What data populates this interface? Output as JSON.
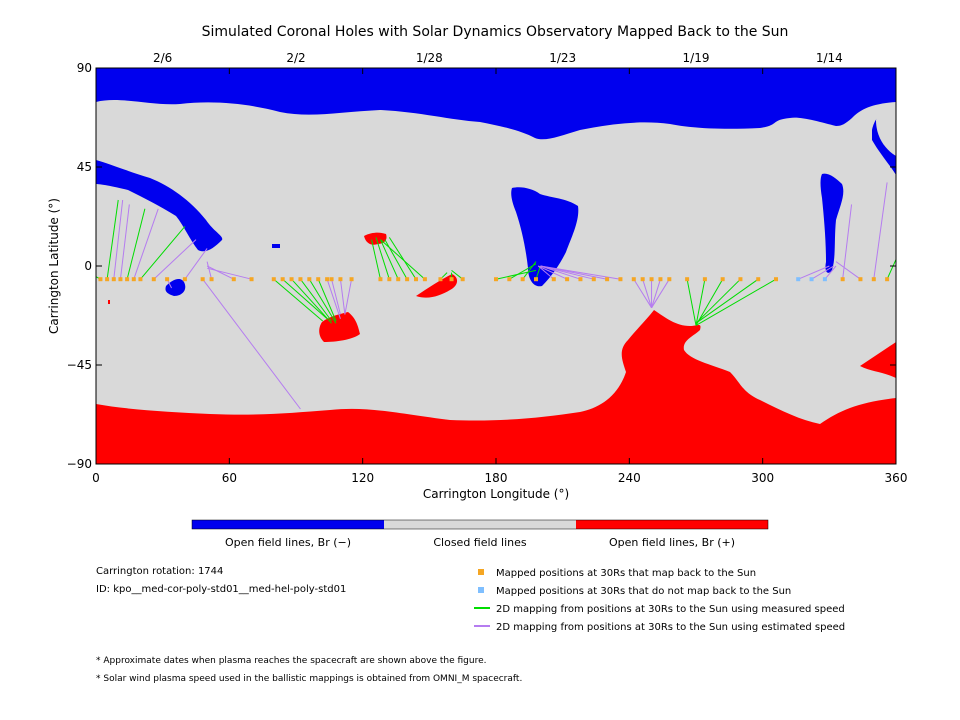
{
  "chart_data": {
    "type": "map",
    "title": "Simulated Coronal Holes with Solar Dynamics Observatory Mapped Back to the Sun",
    "xlabel": "Carrington Longitude (°)",
    "ylabel": "Carrington Latitude (°)",
    "xlim": [
      0,
      360
    ],
    "ylim": [
      -90,
      90
    ],
    "xticks": [
      0,
      60,
      120,
      180,
      240,
      300,
      360
    ],
    "yticks": [
      -90,
      -45,
      0,
      45,
      90
    ],
    "date_axis": [
      {
        "label": "2/6",
        "lon": 30
      },
      {
        "label": "2/2",
        "lon": 90
      },
      {
        "label": "1/28",
        "lon": 150
      },
      {
        "label": "1/23",
        "lon": 210
      },
      {
        "label": "1/19",
        "lon": 270
      },
      {
        "label": "1/14",
        "lon": 330
      }
    ],
    "colors": {
      "open_negative": "#0000ee",
      "closed": "#d9d9d9",
      "open_positive": "#ff0000",
      "mapped": "#f5a623",
      "not_mapped": "#7fbfff",
      "measured_line": "#00dd00",
      "estimated_line": "#b57cf0"
    },
    "colorbar": [
      {
        "label": "Open field lines, Br (−)",
        "color": "#0000ee"
      },
      {
        "label": "Closed field lines",
        "color": "#d9d9d9"
      },
      {
        "label": "Open field lines, Br (+)",
        "color": "#ff0000"
      }
    ],
    "legend": [
      {
        "label": "Mapped positions at 30Rs that map back to the Sun",
        "type": "square",
        "color": "#f5a623"
      },
      {
        "label": "Mapped positions at 30Rs that do not map back to the Sun",
        "type": "square",
        "color": "#7fbfff"
      },
      {
        "label": "2D mapping from positions at 30Rs to the Sun using measured speed",
        "type": "line",
        "color": "#00dd00"
      },
      {
        "label": "2D mapping from positions at 30Rs to the Sun using estimated speed",
        "type": "line",
        "color": "#b57cf0"
      }
    ],
    "spacecraft_track_lat": -6,
    "mappings": [
      {
        "from": 2,
        "to": [
          -5,
          -2
        ],
        "type": "measured"
      },
      {
        "from": 5,
        "to": [
          10,
          30
        ],
        "type": "measured"
      },
      {
        "from": 8,
        "to": [
          12,
          30
        ],
        "type": "estimated"
      },
      {
        "from": 11,
        "to": [
          15,
          28
        ],
        "type": "estimated"
      },
      {
        "from": 14,
        "to": [
          22,
          26
        ],
        "type": "measured"
      },
      {
        "from": 17,
        "to": [
          28,
          26
        ],
        "type": "estimated"
      },
      {
        "from": 20,
        "to": [
          40,
          18
        ],
        "type": "measured"
      },
      {
        "from": 26,
        "to": [
          45,
          12
        ],
        "type": "estimated"
      },
      {
        "from": 32,
        "to": [
          34,
          -10
        ],
        "type": "estimated"
      },
      {
        "from": 40,
        "to": [
          50,
          8
        ],
        "type": "estimated"
      },
      {
        "from": 48,
        "to": [
          92,
          -65
        ],
        "type": "estimated"
      },
      {
        "from": 52,
        "to": [
          50,
          2
        ],
        "type": "estimated"
      },
      {
        "from": 62,
        "to": [
          50,
          0
        ],
        "type": "estimated"
      },
      {
        "from": 70,
        "to": [
          50,
          -1
        ],
        "type": "estimated"
      },
      {
        "from": 80,
        "to": [
          102,
          -25
        ],
        "type": "measured"
      },
      {
        "from": 84,
        "to": [
          104,
          -24
        ],
        "type": "measured"
      },
      {
        "from": 88,
        "to": [
          106,
          -26
        ],
        "type": "measured"
      },
      {
        "from": 92,
        "to": [
          106,
          -25
        ],
        "type": "measured"
      },
      {
        "from": 96,
        "to": [
          108,
          -26
        ],
        "type": "measured"
      },
      {
        "from": 100,
        "to": [
          108,
          -25
        ],
        "type": "measured"
      },
      {
        "from": 104,
        "to": [
          110,
          -24
        ],
        "type": "estimated"
      },
      {
        "from": 106,
        "to": [
          110,
          -22
        ],
        "type": "estimated"
      },
      {
        "from": 110,
        "to": [
          112,
          -22
        ],
        "type": "estimated"
      },
      {
        "from": 115,
        "to": [
          112,
          -22
        ],
        "type": "estimated"
      },
      {
        "from": 128,
        "to": [
          124,
          12
        ],
        "type": "measured"
      },
      {
        "from": 132,
        "to": [
          126,
          13
        ],
        "type": "measured"
      },
      {
        "from": 136,
        "to": [
          128,
          12
        ],
        "type": "measured"
      },
      {
        "from": 140,
        "to": [
          130,
          12
        ],
        "type": "measured"
      },
      {
        "from": 144,
        "to": [
          132,
          13
        ],
        "type": "measured"
      },
      {
        "from": 148,
        "to": [
          128,
          12
        ],
        "type": "measured"
      },
      {
        "from": 155,
        "to": [
          158,
          -3
        ],
        "type": "measured"
      },
      {
        "from": 160,
        "to": [
          160,
          -3
        ],
        "type": "measured"
      },
      {
        "from": 165,
        "to": [
          160,
          -2
        ],
        "type": "measured"
      },
      {
        "from": 180,
        "to": [
          198,
          -2
        ],
        "type": "measured"
      },
      {
        "from": 186,
        "to": [
          198,
          1
        ],
        "type": "measured"
      },
      {
        "from": 192,
        "to": [
          198,
          2
        ],
        "type": "measured"
      },
      {
        "from": 198,
        "to": [
          200,
          0
        ],
        "type": "measured"
      },
      {
        "from": 206,
        "to": [
          199,
          0
        ],
        "type": "estimated"
      },
      {
        "from": 212,
        "to": [
          199,
          0
        ],
        "type": "estimated"
      },
      {
        "from": 218,
        "to": [
          200,
          0
        ],
        "type": "estimated"
      },
      {
        "from": 224,
        "to": [
          200,
          0
        ],
        "type": "estimated"
      },
      {
        "from": 230,
        "to": [
          200,
          0
        ],
        "type": "estimated"
      },
      {
        "from": 236,
        "to": [
          200,
          0
        ],
        "type": "estimated"
      },
      {
        "from": 242,
        "to": [
          250,
          -19
        ],
        "type": "estimated"
      },
      {
        "from": 246,
        "to": [
          250,
          -19
        ],
        "type": "estimated"
      },
      {
        "from": 250,
        "to": [
          250,
          -19
        ],
        "type": "estimated"
      },
      {
        "from": 254,
        "to": [
          250,
          -19
        ],
        "type": "estimated"
      },
      {
        "from": 258,
        "to": [
          250,
          -19
        ],
        "type": "estimated"
      },
      {
        "from": 266,
        "to": [
          270,
          -27
        ],
        "type": "measured"
      },
      {
        "from": 274,
        "to": [
          270,
          -27
        ],
        "type": "measured"
      },
      {
        "from": 282,
        "to": [
          270,
          -27
        ],
        "type": "measured"
      },
      {
        "from": 290,
        "to": [
          270,
          -26
        ],
        "type": "measured"
      },
      {
        "from": 298,
        "to": [
          270,
          -26
        ],
        "type": "measured"
      },
      {
        "from": 306,
        "to": [
          270,
          -27
        ],
        "type": "measured"
      },
      {
        "from": 316,
        "to": [
          330,
          0
        ],
        "type": "estimated"
      },
      {
        "from": 322,
        "to": [
          332,
          0
        ],
        "type": "estimated"
      },
      {
        "from": 328,
        "to": [
          333,
          0
        ],
        "type": "estimated"
      },
      {
        "from": 336,
        "to": [
          340,
          28
        ],
        "type": "estimated"
      },
      {
        "from": 344,
        "to": [
          333,
          2
        ],
        "type": "estimated"
      },
      {
        "from": 350,
        "to": [
          356,
          38
        ],
        "type": "estimated"
      },
      {
        "from": 356,
        "to": [
          360,
          3
        ],
        "type": "measured"
      }
    ]
  },
  "info": {
    "rotation": "Carrington rotation: 1744",
    "id": "ID: kpo__med-cor-poly-std01__med-hel-poly-std01",
    "note1": "* Approximate dates when plasma reaches the spacecraft are shown above the figure.",
    "note2": "* Solar wind plasma speed used in the ballistic mappings is obtained from OMNI_M spacecraft."
  }
}
